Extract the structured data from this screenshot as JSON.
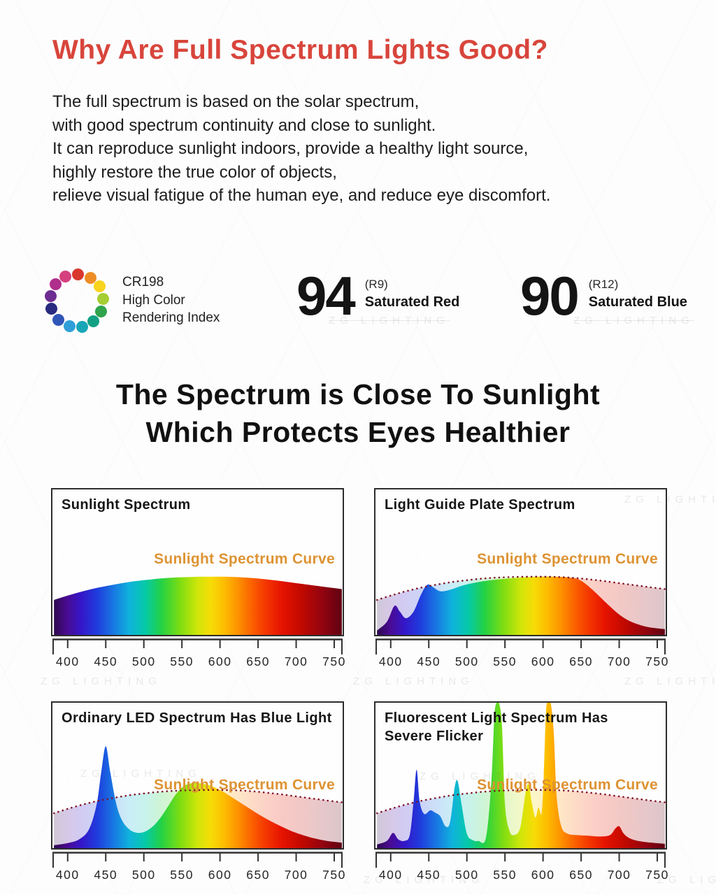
{
  "page": {
    "title": "Why Are Full Spectrum Lights Good?",
    "paragraph_lines": [
      "The full spectrum is based on the solar spectrum,",
      "with good spectrum continuity and close to sunlight.",
      "It can reproduce sunlight indoors, provide a healthy light source,",
      "highly restore the true color of objects,",
      "relieve visual fatigue of the human eye, and reduce eye discomfort."
    ],
    "heading_line1": "The Spectrum is Close To Sunlight",
    "heading_line2": "Which Protects Eyes Healthier",
    "watermark": "ZG LIGHTING"
  },
  "colors": {
    "accent_red": "#d8453b",
    "label_orange": "#dd9333",
    "dotted_curve": "#7e1226",
    "ink": "#1c1c1c",
    "axis": "#333333"
  },
  "cri": {
    "label_lines": [
      "CR198",
      "High Color",
      "Rendering Index"
    ],
    "ring_colors": [
      "#d5417f",
      "#d9382e",
      "#ee8d26",
      "#f8d41c",
      "#a5ce35",
      "#2fa44c",
      "#13a184",
      "#17a6b8",
      "#2f9fd9",
      "#3056b8",
      "#282b80",
      "#6f2d93",
      "#b02e8c"
    ],
    "metrics": [
      {
        "value": "94",
        "ref": "(R9)",
        "label": "Saturated Red"
      },
      {
        "value": "90",
        "ref": "(R12)",
        "label": "Saturated Blue"
      }
    ]
  },
  "chart_style": {
    "x_range_nm": [
      380,
      761
    ],
    "y_range": [
      0,
      1
    ],
    "reference_opacity": 0.22,
    "rainbow_gradient_stops": [
      [
        0.0,
        "#2a0845"
      ],
      [
        0.05,
        "#4a0b92"
      ],
      [
        0.1,
        "#3417c9"
      ],
      [
        0.155,
        "#1f3ddd"
      ],
      [
        0.21,
        "#1877e2"
      ],
      [
        0.265,
        "#0fb3dc"
      ],
      [
        0.32,
        "#06c9a8"
      ],
      [
        0.375,
        "#23d145"
      ],
      [
        0.44,
        "#7edd12"
      ],
      [
        0.5,
        "#cfe60a"
      ],
      [
        0.545,
        "#f6dd06"
      ],
      [
        0.59,
        "#fdbd02"
      ],
      [
        0.635,
        "#fd9600"
      ],
      [
        0.685,
        "#fb6300"
      ],
      [
        0.735,
        "#f43700"
      ],
      [
        0.79,
        "#e61300"
      ],
      [
        0.86,
        "#c00800"
      ],
      [
        0.93,
        "#930410"
      ],
      [
        1.0,
        "#5e0012"
      ]
    ]
  },
  "sunlight_reference_curve": [
    [
      382,
      0.24
    ],
    [
      400,
      0.27
    ],
    [
      420,
      0.3
    ],
    [
      440,
      0.325
    ],
    [
      460,
      0.345
    ],
    [
      480,
      0.363
    ],
    [
      500,
      0.376
    ],
    [
      520,
      0.387
    ],
    [
      540,
      0.394
    ],
    [
      560,
      0.398
    ],
    [
      580,
      0.4
    ],
    [
      600,
      0.4
    ],
    [
      620,
      0.398
    ],
    [
      640,
      0.392
    ],
    [
      660,
      0.382
    ],
    [
      680,
      0.37
    ],
    [
      700,
      0.356
    ],
    [
      720,
      0.342
    ],
    [
      740,
      0.328
    ],
    [
      760,
      0.315
    ]
  ],
  "chart_data": [
    {
      "type": "area",
      "title_lines": [
        "Sunlight Spectrum"
      ],
      "curve_label": "Sunlight Spectrum Curve",
      "x_ticks": [
        400,
        450,
        500,
        550,
        600,
        650,
        700,
        750
      ],
      "show_reference": false,
      "spectrum_nm_intensity": [
        [
          382,
          0.24
        ],
        [
          400,
          0.27
        ],
        [
          420,
          0.3
        ],
        [
          440,
          0.325
        ],
        [
          460,
          0.345
        ],
        [
          480,
          0.363
        ],
        [
          500,
          0.376
        ],
        [
          520,
          0.387
        ],
        [
          540,
          0.394
        ],
        [
          560,
          0.398
        ],
        [
          580,
          0.4
        ],
        [
          600,
          0.4
        ],
        [
          620,
          0.398
        ],
        [
          640,
          0.392
        ],
        [
          660,
          0.382
        ],
        [
          680,
          0.37
        ],
        [
          700,
          0.356
        ],
        [
          720,
          0.342
        ],
        [
          740,
          0.328
        ],
        [
          760,
          0.315
        ]
      ]
    },
    {
      "type": "area",
      "title_lines": [
        "Light Guide Plate Spectrum"
      ],
      "curve_label": "Sunlight Spectrum Curve",
      "x_ticks": [
        400,
        450,
        500,
        550,
        600,
        650,
        700,
        750
      ],
      "show_reference": true,
      "spectrum_nm_intensity": [
        [
          382,
          0.03
        ],
        [
          395,
          0.09
        ],
        [
          405,
          0.2
        ],
        [
          412,
          0.16
        ],
        [
          420,
          0.115
        ],
        [
          430,
          0.16
        ],
        [
          440,
          0.28
        ],
        [
          448,
          0.345
        ],
        [
          455,
          0.33
        ],
        [
          465,
          0.3
        ],
        [
          478,
          0.31
        ],
        [
          495,
          0.34
        ],
        [
          515,
          0.363
        ],
        [
          535,
          0.378
        ],
        [
          555,
          0.388
        ],
        [
          575,
          0.395
        ],
        [
          595,
          0.4
        ],
        [
          615,
          0.4
        ],
        [
          632,
          0.396
        ],
        [
          645,
          0.385
        ],
        [
          655,
          0.355
        ],
        [
          665,
          0.31
        ],
        [
          675,
          0.26
        ],
        [
          688,
          0.195
        ],
        [
          700,
          0.14
        ],
        [
          712,
          0.1
        ],
        [
          725,
          0.072
        ],
        [
          740,
          0.052
        ],
        [
          760,
          0.04
        ]
      ]
    },
    {
      "type": "area",
      "title_lines": [
        "Ordinary LED Spectrum Has Blue Light"
      ],
      "curve_label": "Sunlight Spectrum Curve",
      "x_ticks": [
        400,
        450,
        500,
        550,
        600,
        650,
        700,
        750
      ],
      "show_reference": true,
      "spectrum_nm_intensity": [
        [
          382,
          0.02
        ],
        [
          400,
          0.035
        ],
        [
          415,
          0.06
        ],
        [
          428,
          0.13
        ],
        [
          438,
          0.3
        ],
        [
          444,
          0.52
        ],
        [
          450,
          0.7
        ],
        [
          456,
          0.52
        ],
        [
          464,
          0.3
        ],
        [
          472,
          0.185
        ],
        [
          482,
          0.125
        ],
        [
          492,
          0.105
        ],
        [
          502,
          0.115
        ],
        [
          512,
          0.15
        ],
        [
          522,
          0.21
        ],
        [
          532,
          0.29
        ],
        [
          542,
          0.37
        ],
        [
          552,
          0.425
        ],
        [
          562,
          0.445
        ],
        [
          575,
          0.445
        ],
        [
          590,
          0.425
        ],
        [
          605,
          0.385
        ],
        [
          620,
          0.335
        ],
        [
          635,
          0.285
        ],
        [
          650,
          0.235
        ],
        [
          665,
          0.19
        ],
        [
          680,
          0.15
        ],
        [
          695,
          0.115
        ],
        [
          710,
          0.088
        ],
        [
          725,
          0.066
        ],
        [
          740,
          0.05
        ],
        [
          760,
          0.038
        ]
      ]
    },
    {
      "type": "area",
      "title_lines": [
        "Fluorescent Light Spectrum Has",
        "Severe Flicker"
      ],
      "curve_label": "Sunlight Spectrum Curve",
      "x_ticks": [
        400,
        450,
        500,
        550,
        600,
        650,
        700,
        750
      ],
      "show_reference": true,
      "spectrum_nm_intensity": [
        [
          382,
          0.025
        ],
        [
          395,
          0.05
        ],
        [
          403,
          0.105
        ],
        [
          410,
          0.06
        ],
        [
          418,
          0.05
        ],
        [
          425,
          0.09
        ],
        [
          430,
          0.32
        ],
        [
          434,
          0.54
        ],
        [
          438,
          0.32
        ],
        [
          444,
          0.235
        ],
        [
          452,
          0.26
        ],
        [
          458,
          0.245
        ],
        [
          465,
          0.22
        ],
        [
          472,
          0.15
        ],
        [
          478,
          0.18
        ],
        [
          484,
          0.42
        ],
        [
          488,
          0.46
        ],
        [
          493,
          0.3
        ],
        [
          500,
          0.1
        ],
        [
          508,
          0.055
        ],
        [
          515,
          0.05
        ],
        [
          525,
          0.07
        ],
        [
          532,
          0.45
        ],
        [
          536,
          0.9
        ],
        [
          539,
          1.0
        ],
        [
          542,
          1.0
        ],
        [
          546,
          0.85
        ],
        [
          550,
          0.3
        ],
        [
          556,
          0.12
        ],
        [
          562,
          0.09
        ],
        [
          570,
          0.14
        ],
        [
          577,
          0.38
        ],
        [
          581,
          0.44
        ],
        [
          585,
          0.32
        ],
        [
          590,
          0.21
        ],
        [
          594,
          0.28
        ],
        [
          598,
          0.24
        ],
        [
          601,
          0.5
        ],
        [
          604,
          0.95
        ],
        [
          607,
          1.0
        ],
        [
          610,
          1.0
        ],
        [
          614,
          0.8
        ],
        [
          618,
          0.35
        ],
        [
          624,
          0.15
        ],
        [
          632,
          0.1
        ],
        [
          645,
          0.09
        ],
        [
          660,
          0.085
        ],
        [
          675,
          0.08
        ],
        [
          688,
          0.09
        ],
        [
          695,
          0.135
        ],
        [
          700,
          0.15
        ],
        [
          706,
          0.1
        ],
        [
          715,
          0.065
        ],
        [
          730,
          0.045
        ],
        [
          760,
          0.03
        ]
      ]
    }
  ]
}
